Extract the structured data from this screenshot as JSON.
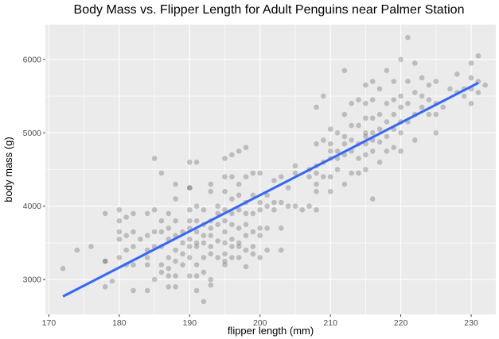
{
  "chart_data": {
    "type": "scatter",
    "title": "Body Mass vs. Flipper Length for Adult Penguins near Palmer Station",
    "xlabel": "flipper length (mm)",
    "ylabel": "body mass (g)",
    "xlim": [
      169.5,
      233.5
    ],
    "ylim": [
      2525,
      6475
    ],
    "xticks": [
      170,
      180,
      190,
      200,
      210,
      220,
      230
    ],
    "yticks": [
      3000,
      4000,
      5000,
      6000
    ],
    "grid": true,
    "colors": {
      "panel": "#ebebeb",
      "grid_major": "#ffffff",
      "point": "#5a5a5a",
      "fit_line": "#3366ff"
    },
    "point_opacity": 0.32,
    "fit_line": {
      "x": [
        172,
        231
      ],
      "y": [
        2770,
        5680
      ]
    },
    "points": [
      [
        172,
        3150
      ],
      [
        174,
        3400
      ],
      [
        176,
        3450
      ],
      [
        178,
        3900
      ],
      [
        178,
        3250
      ],
      [
        178,
        3250
      ],
      [
        178,
        2900
      ],
      [
        179,
        2980
      ],
      [
        180,
        3950
      ],
      [
        180,
        3800
      ],
      [
        180,
        3650
      ],
      [
        180,
        3550
      ],
      [
        180,
        3300
      ],
      [
        181,
        3850
      ],
      [
        181,
        3600
      ],
      [
        181,
        3400
      ],
      [
        181,
        3200
      ],
      [
        182,
        3900
      ],
      [
        182,
        3650
      ],
      [
        182,
        3450
      ],
      [
        182,
        3200
      ],
      [
        182,
        2850
      ],
      [
        183,
        3550
      ],
      [
        184,
        3900
      ],
      [
        184,
        3600
      ],
      [
        184,
        3400
      ],
      [
        184,
        3300
      ],
      [
        184,
        3200
      ],
      [
        184,
        2850
      ],
      [
        185,
        4650
      ],
      [
        185,
        3950
      ],
      [
        185,
        3650
      ],
      [
        185,
        3450
      ],
      [
        185,
        3000
      ],
      [
        186,
        4450
      ],
      [
        186,
        3800
      ],
      [
        186,
        3650
      ],
      [
        186,
        3450
      ],
      [
        186,
        3200
      ],
      [
        186,
        3100
      ],
      [
        187,
        3900
      ],
      [
        187,
        3700
      ],
      [
        187,
        3550
      ],
      [
        187,
        3300
      ],
      [
        187,
        3150
      ],
      [
        187,
        3050
      ],
      [
        187,
        2900
      ],
      [
        188,
        4300
      ],
      [
        188,
        4100
      ],
      [
        188,
        3800
      ],
      [
        188,
        3600
      ],
      [
        188,
        3400
      ],
      [
        188,
        3250
      ],
      [
        188,
        3050
      ],
      [
        188,
        2900
      ],
      [
        189,
        3650
      ],
      [
        189,
        3500
      ],
      [
        189,
        3350
      ],
      [
        189,
        3200
      ],
      [
        190,
        4600
      ],
      [
        190,
        4250
      ],
      [
        190,
        4250
      ],
      [
        190,
        3950
      ],
      [
        190,
        3800
      ],
      [
        190,
        3700
      ],
      [
        190,
        3550
      ],
      [
        190,
        3450
      ],
      [
        190,
        3300
      ],
      [
        190,
        3050
      ],
      [
        191,
        4600
      ],
      [
        191,
        4000
      ],
      [
        191,
        3800
      ],
      [
        191,
        3650
      ],
      [
        191,
        3500
      ],
      [
        191,
        3450
      ],
      [
        191,
        3200
      ],
      [
        191,
        3050
      ],
      [
        191,
        2850
      ],
      [
        192,
        3950
      ],
      [
        192,
        3750
      ],
      [
        192,
        3600
      ],
      [
        192,
        3500
      ],
      [
        192,
        3300
      ],
      [
        192,
        3100
      ],
      [
        192,
        2700
      ],
      [
        193,
        4300
      ],
      [
        193,
        4200
      ],
      [
        193,
        3800
      ],
      [
        193,
        3700
      ],
      [
        193,
        3600
      ],
      [
        193,
        3450
      ],
      [
        193,
        3350
      ],
      [
        193,
        3000
      ],
      [
        193,
        2925
      ],
      [
        194,
        4000
      ],
      [
        194,
        3900
      ],
      [
        194,
        3750
      ],
      [
        194,
        3525
      ],
      [
        194,
        3300
      ],
      [
        195,
        4650
      ],
      [
        195,
        4400
      ],
      [
        195,
        4200
      ],
      [
        195,
        3950
      ],
      [
        195,
        3800
      ],
      [
        195,
        3650
      ],
      [
        195,
        3500
      ],
      [
        195,
        3350
      ],
      [
        195,
        3250
      ],
      [
        195,
        3200
      ],
      [
        196,
        4700
      ],
      [
        196,
        4400
      ],
      [
        196,
        4100
      ],
      [
        196,
        3900
      ],
      [
        196,
        3750
      ],
      [
        196,
        3550
      ],
      [
        196,
        3450
      ],
      [
        196,
        3300
      ],
      [
        197,
        4750
      ],
      [
        197,
        4300
      ],
      [
        197,
        4150
      ],
      [
        197,
        3950
      ],
      [
        197,
        3700
      ],
      [
        197,
        3500
      ],
      [
        197,
        3450
      ],
      [
        197,
        3300
      ],
      [
        198,
        4800
      ],
      [
        198,
        4400
      ],
      [
        198,
        4050
      ],
      [
        198,
        3900
      ],
      [
        198,
        3750
      ],
      [
        198,
        3600
      ],
      [
        198,
        3400
      ],
      [
        198,
        3175
      ],
      [
        199,
        4450
      ],
      [
        199,
        4150
      ],
      [
        199,
        3900
      ],
      [
        199,
        3650
      ],
      [
        199,
        3450
      ],
      [
        199,
        3350
      ],
      [
        200,
        4450
      ],
      [
        200,
        4050
      ],
      [
        200,
        3950
      ],
      [
        200,
        3700
      ],
      [
        200,
        3600
      ],
      [
        200,
        3300
      ],
      [
        201,
        4150
      ],
      [
        201,
        4000
      ],
      [
        201,
        3700
      ],
      [
        201,
        3400
      ],
      [
        202,
        4350
      ],
      [
        202,
        4050
      ],
      [
        202,
        3950
      ],
      [
        203,
        4400
      ],
      [
        203,
        4050
      ],
      [
        203,
        3700
      ],
      [
        203,
        3400
      ],
      [
        204,
        4250
      ],
      [
        204,
        4000
      ],
      [
        205,
        4550
      ],
      [
        205,
        4450
      ],
      [
        205,
        4000
      ],
      [
        206,
        3950
      ],
      [
        207,
        4500
      ],
      [
        207,
        4400
      ],
      [
        207,
        4000
      ],
      [
        208,
        5350
      ],
      [
        208,
        4850
      ],
      [
        208,
        4550
      ],
      [
        208,
        4450
      ],
      [
        208,
        4300
      ],
      [
        208,
        4200
      ],
      [
        208,
        3950
      ],
      [
        209,
        5500
      ],
      [
        209,
        4900
      ],
      [
        209,
        4600
      ],
      [
        209,
        4400
      ],
      [
        210,
        5050
      ],
      [
        210,
        4850
      ],
      [
        210,
        4750
      ],
      [
        210,
        4650
      ],
      [
        210,
        4400
      ],
      [
        210,
        4200
      ],
      [
        211,
        5000
      ],
      [
        211,
        4750
      ],
      [
        211,
        4650
      ],
      [
        211,
        4500
      ],
      [
        212,
        5850
      ],
      [
        212,
        5250
      ],
      [
        212,
        4950
      ],
      [
        212,
        4850
      ],
      [
        212,
        4700
      ],
      [
        212,
        4300
      ],
      [
        213,
        5400
      ],
      [
        213,
        5100
      ],
      [
        213,
        4900
      ],
      [
        213,
        4750
      ],
      [
        213,
        4450
      ],
      [
        214,
        5450
      ],
      [
        214,
        5100
      ],
      [
        214,
        4850
      ],
      [
        214,
        4650
      ],
      [
        214,
        4450
      ],
      [
        215,
        5650
      ],
      [
        215,
        5400
      ],
      [
        215,
        5200
      ],
      [
        215,
        5000
      ],
      [
        215,
        4950
      ],
      [
        215,
        4850
      ],
      [
        215,
        4700
      ],
      [
        215,
        4500
      ],
      [
        216,
        5700
      ],
      [
        216,
        5450
      ],
      [
        216,
        5200
      ],
      [
        216,
        5000
      ],
      [
        216,
        4900
      ],
      [
        216,
        4750
      ],
      [
        216,
        4100
      ],
      [
        217,
        5600
      ],
      [
        217,
        5250
      ],
      [
        217,
        5050
      ],
      [
        217,
        4875
      ],
      [
        217,
        4600
      ],
      [
        218,
        5850
      ],
      [
        218,
        5400
      ],
      [
        218,
        5150
      ],
      [
        218,
        4950
      ],
      [
        218,
        4750
      ],
      [
        219,
        5700
      ],
      [
        219,
        5450
      ],
      [
        219,
        5250
      ],
      [
        219,
        5050
      ],
      [
        219,
        4800
      ],
      [
        220,
        6000
      ],
      [
        220,
        5500
      ],
      [
        220,
        5350
      ],
      [
        220,
        5150
      ],
      [
        220,
        5000
      ],
      [
        220,
        4750
      ],
      [
        221,
        6300
      ],
      [
        221,
        5700
      ],
      [
        221,
        5400
      ],
      [
        221,
        5150
      ],
      [
        222,
        5950
      ],
      [
        222,
        5550
      ],
      [
        222,
        5250
      ],
      [
        222,
        4900
      ],
      [
        223,
        5750
      ],
      [
        223,
        5500
      ],
      [
        223,
        5350
      ],
      [
        224,
        5650
      ],
      [
        224,
        5450
      ],
      [
        224,
        5250
      ],
      [
        225,
        5700
      ],
      [
        225,
        5400
      ],
      [
        225,
        5250
      ],
      [
        225,
        5000
      ],
      [
        226,
        5350
      ],
      [
        227,
        5600
      ],
      [
        228,
        5800
      ],
      [
        228,
        5550
      ],
      [
        229,
        5600
      ],
      [
        229,
        5500
      ],
      [
        230,
        5950
      ],
      [
        230,
        5750
      ],
      [
        230,
        5600
      ],
      [
        230,
        5400
      ],
      [
        231,
        6050
      ],
      [
        231,
        5700
      ],
      [
        231,
        5550
      ],
      [
        232,
        5650
      ]
    ]
  }
}
